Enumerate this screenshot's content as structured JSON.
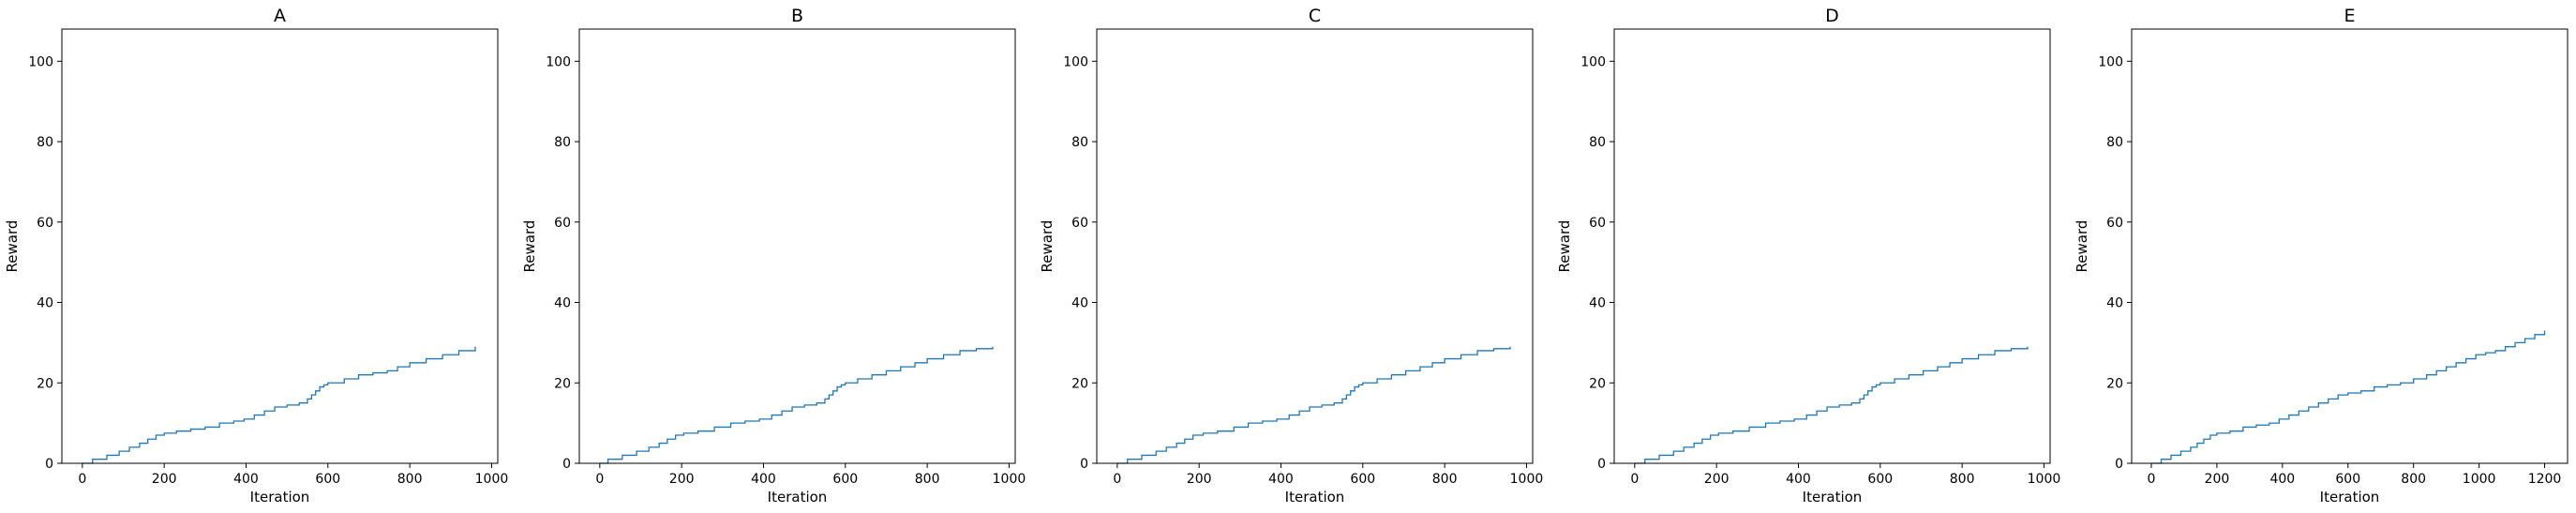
{
  "figure": {
    "line_color": "#1f77b4",
    "axes_color": "#000000",
    "background": "#ffffff"
  },
  "chart_data": [
    {
      "type": "line",
      "title": "A",
      "xlabel": "Iteration",
      "ylabel": "Reward",
      "xlim": [
        -50,
        1015
      ],
      "ylim": [
        0,
        108
      ],
      "xticks": [
        0,
        200,
        400,
        600,
        800,
        1000
      ],
      "yticks": [
        0,
        20,
        40,
        60,
        80,
        100
      ],
      "grid": false,
      "series": [
        {
          "step": true,
          "x": [
            0,
            25,
            60,
            90,
            115,
            140,
            160,
            180,
            200,
            230,
            265,
            300,
            335,
            370,
            395,
            420,
            445,
            470,
            500,
            530,
            550,
            560,
            570,
            580,
            590,
            600,
            640,
            675,
            710,
            745,
            770,
            800,
            840,
            880,
            920,
            960
          ],
          "y": [
            0,
            1,
            2,
            3,
            4,
            5,
            6,
            7,
            7.5,
            8,
            8.5,
            9,
            10,
            10.5,
            11,
            12,
            13,
            14,
            14.5,
            15,
            16,
            17,
            18,
            19,
            19.5,
            20,
            21,
            22,
            22.5,
            23,
            24,
            25,
            26,
            27,
            28,
            29
          ]
        }
      ]
    },
    {
      "type": "line",
      "title": "B",
      "xlabel": "Iteration",
      "ylabel": "Reward",
      "xlim": [
        -50,
        1015
      ],
      "ylim": [
        0,
        108
      ],
      "xticks": [
        0,
        200,
        400,
        600,
        800,
        1000
      ],
      "yticks": [
        0,
        20,
        40,
        60,
        80,
        100
      ],
      "grid": false,
      "series": [
        {
          "step": true,
          "x": [
            0,
            20,
            55,
            90,
            120,
            145,
            165,
            185,
            205,
            240,
            280,
            320,
            355,
            390,
            420,
            445,
            470,
            500,
            530,
            550,
            560,
            570,
            580,
            590,
            600,
            630,
            665,
            700,
            735,
            770,
            800,
            840,
            880,
            920,
            960
          ],
          "y": [
            0,
            1,
            2,
            3,
            4,
            5,
            6,
            7,
            7.5,
            8,
            9,
            10,
            10.5,
            11,
            12,
            13,
            14,
            14.5,
            15,
            16,
            17,
            18,
            19,
            19.5,
            20,
            21,
            22,
            23,
            24,
            25,
            26,
            27,
            28,
            28.5,
            29
          ]
        }
      ]
    },
    {
      "type": "line",
      "title": "C",
      "xlabel": "Iteration",
      "ylabel": "Reward",
      "xlim": [
        -50,
        1015
      ],
      "ylim": [
        0,
        108
      ],
      "xticks": [
        0,
        200,
        400,
        600,
        800,
        1000
      ],
      "yticks": [
        0,
        20,
        40,
        60,
        80,
        100
      ],
      "grid": false,
      "series": [
        {
          "step": true,
          "x": [
            0,
            25,
            60,
            95,
            120,
            145,
            165,
            185,
            210,
            245,
            285,
            320,
            355,
            390,
            420,
            445,
            470,
            500,
            530,
            550,
            560,
            570,
            580,
            590,
            600,
            635,
            670,
            705,
            740,
            770,
            800,
            840,
            880,
            920,
            960
          ],
          "y": [
            0,
            1,
            2,
            3,
            4,
            5,
            6,
            7,
            7.5,
            8,
            9,
            10,
            10.5,
            11,
            12,
            13,
            14,
            14.5,
            15,
            16,
            17,
            18,
            19,
            19.5,
            20,
            21,
            22,
            23,
            24,
            25,
            26,
            27,
            28,
            28.5,
            29
          ]
        }
      ]
    },
    {
      "type": "line",
      "title": "D",
      "xlabel": "Iteration",
      "ylabel": "Reward",
      "xlim": [
        -50,
        1015
      ],
      "ylim": [
        0,
        108
      ],
      "xticks": [
        0,
        200,
        400,
        600,
        800,
        1000
      ],
      "yticks": [
        0,
        20,
        40,
        60,
        80,
        100
      ],
      "grid": false,
      "series": [
        {
          "step": true,
          "x": [
            0,
            25,
            60,
            95,
            120,
            145,
            165,
            185,
            205,
            240,
            280,
            320,
            355,
            390,
            420,
            445,
            470,
            500,
            530,
            550,
            560,
            570,
            580,
            590,
            600,
            635,
            670,
            705,
            740,
            770,
            800,
            840,
            880,
            920,
            960
          ],
          "y": [
            0,
            1,
            2,
            3,
            4,
            5,
            6,
            7,
            7.5,
            8,
            9,
            10,
            10.5,
            11,
            12,
            13,
            14,
            14.5,
            15,
            16,
            17,
            18,
            19,
            19.5,
            20,
            21,
            22,
            23,
            24,
            25,
            26,
            27,
            28,
            28.5,
            29
          ]
        }
      ]
    },
    {
      "type": "line",
      "title": "E",
      "xlabel": "Iteration",
      "ylabel": "Reward",
      "xlim": [
        -60,
        1270
      ],
      "ylim": [
        0,
        108
      ],
      "xticks": [
        0,
        200,
        400,
        600,
        800,
        1000,
        1200
      ],
      "yticks": [
        0,
        20,
        40,
        60,
        80,
        100
      ],
      "grid": false,
      "series": [
        {
          "step": true,
          "x": [
            0,
            30,
            60,
            90,
            120,
            140,
            160,
            180,
            200,
            240,
            280,
            320,
            360,
            390,
            420,
            450,
            480,
            510,
            540,
            570,
            600,
            640,
            680,
            720,
            760,
            800,
            840,
            870,
            900,
            930,
            960,
            990,
            1020,
            1050,
            1080,
            1110,
            1140,
            1170,
            1200
          ],
          "y": [
            0,
            1,
            2,
            3,
            4,
            5,
            6,
            7,
            7.5,
            8,
            9,
            9.5,
            10,
            11,
            12,
            13,
            14,
            15,
            16,
            17,
            17.5,
            18,
            19,
            19.5,
            20,
            21,
            22,
            23,
            24,
            25,
            26,
            27,
            27.5,
            28,
            29,
            30,
            31,
            32,
            33
          ]
        }
      ]
    }
  ]
}
